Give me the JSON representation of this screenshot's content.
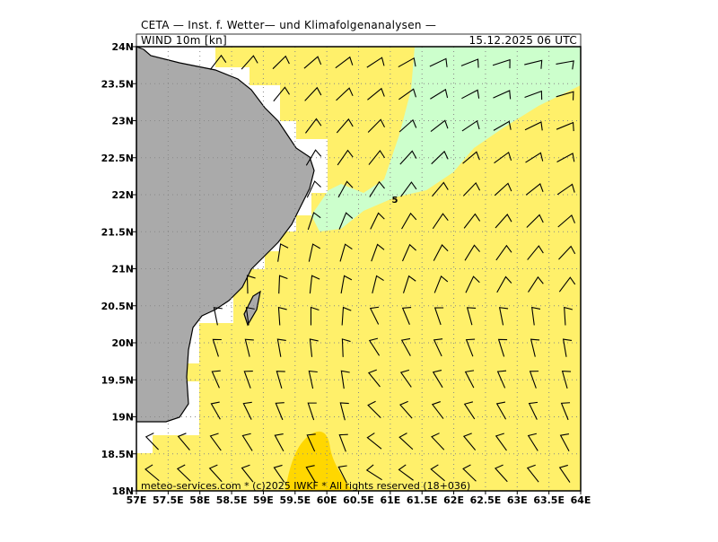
{
  "header": {
    "title": "CETA — Inst. f. Wetter— und Klimafolgenanalysen —",
    "field": "WIND 10m [kn]",
    "valid": "15.12.2025 06 UTC"
  },
  "footer": "meteo-services.com * (c)2025 IWKF * All rights reserved (18+036)",
  "contour_label": "5",
  "axes": {
    "xticks": [
      "57E",
      "57.5E",
      "58E",
      "58.5E",
      "59E",
      "59.5E",
      "60E",
      "60.5E",
      "61E",
      "61.5E",
      "62E",
      "62.5E",
      "63E",
      "63.5E",
      "64E"
    ],
    "yticks": [
      "18N",
      "18.5N",
      "19N",
      "19.5N",
      "20N",
      "20.5N",
      "21N",
      "21.5N",
      "22N",
      "22.5N",
      "23N",
      "23.5N",
      "24N"
    ]
  }
}
